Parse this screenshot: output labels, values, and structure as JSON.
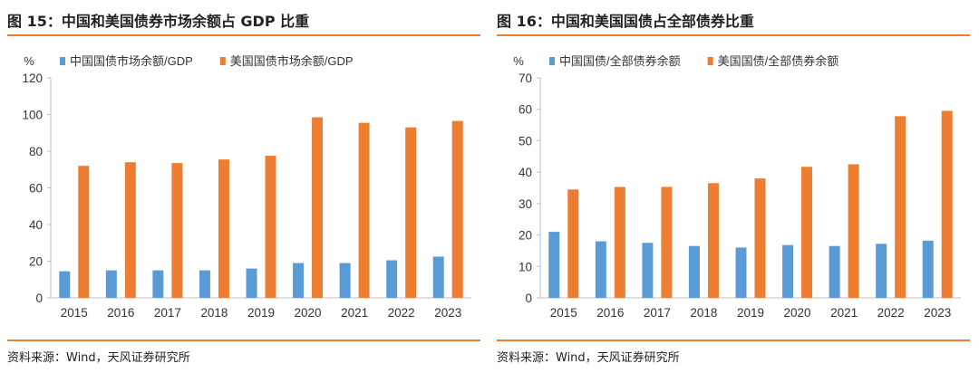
{
  "colors": {
    "china": "#5b9bd5",
    "usa": "#ed7d31",
    "accent": "#ed7d31"
  },
  "left": {
    "figure_title": "图 15：中国和美国债券市场余额占 GDP 比重",
    "source": "资料来源：Wind，天风证券研究所"
  },
  "right": {
    "figure_title": "图 16：中国和美国国债占全部债券比重",
    "source": "资料来源：Wind，天风证券研究所"
  },
  "chart_data": [
    {
      "type": "bar",
      "title": "图 15：中国和美国债券市场余额占 GDP 比重",
      "ylabel": "%",
      "xlabel": "",
      "ylim": [
        0,
        120
      ],
      "yticks": [
        0,
        20,
        40,
        60,
        80,
        100,
        120
      ],
      "grid": false,
      "legend_position": "top",
      "categories": [
        "2015",
        "2016",
        "2017",
        "2018",
        "2019",
        "2020",
        "2021",
        "2022",
        "2023"
      ],
      "series": [
        {
          "name": "中国国债市场余额/GDP",
          "color": "#5b9bd5",
          "values": [
            14.5,
            15,
            15,
            15,
            16,
            19,
            19,
            20.5,
            22.5
          ]
        },
        {
          "name": "美国国债市场余额/GDP",
          "color": "#ed7d31",
          "values": [
            72,
            74,
            73.5,
            75.5,
            77.5,
            98.5,
            95.5,
            93,
            96.5
          ]
        }
      ]
    },
    {
      "type": "bar",
      "title": "图 16：中国和美国国债占全部债券比重",
      "ylabel": "%",
      "xlabel": "",
      "ylim": [
        0,
        70
      ],
      "yticks": [
        0,
        10,
        20,
        30,
        40,
        50,
        60,
        70
      ],
      "grid": false,
      "legend_position": "top",
      "categories": [
        "2015",
        "2016",
        "2017",
        "2018",
        "2019",
        "2020",
        "2021",
        "2022",
        "2023"
      ],
      "series": [
        {
          "name": "中国国债/全部债券余额",
          "color": "#5b9bd5",
          "values": [
            21,
            18,
            17.5,
            16.5,
            16,
            16.8,
            16.5,
            17.2,
            18.2
          ]
        },
        {
          "name": "美国国债/全部债券余额",
          "color": "#ed7d31",
          "values": [
            34.5,
            35.3,
            35.3,
            36.5,
            38,
            41.7,
            42.5,
            57.8,
            59.5
          ]
        }
      ]
    }
  ]
}
